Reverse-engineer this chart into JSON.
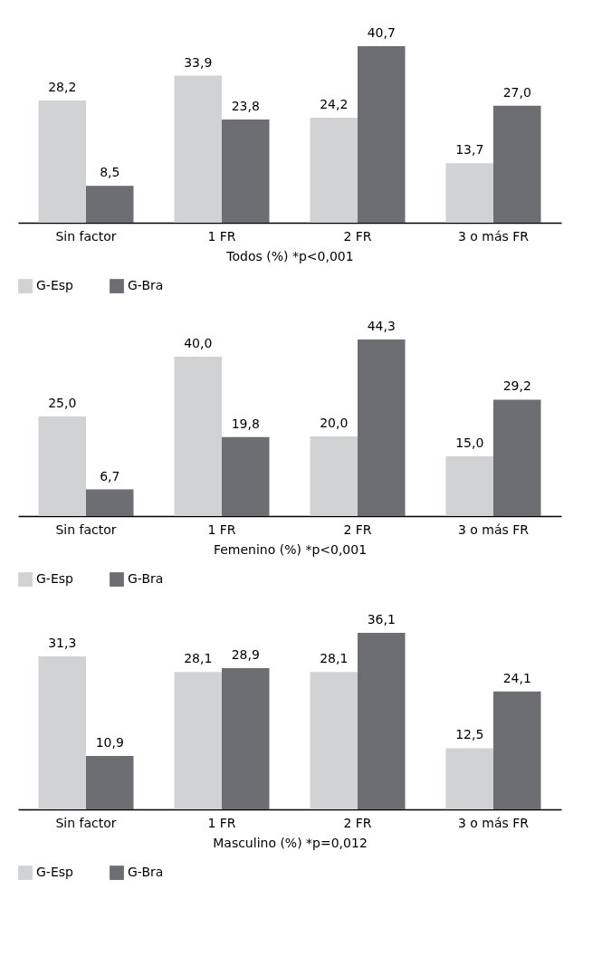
{
  "chart_data": [
    {
      "type": "bar",
      "xlabel": "Todos (%) *p<0,001",
      "categories": [
        "Sin factor",
        "1 FR",
        "2 FR",
        "3 o más FR"
      ],
      "ylim": [
        0,
        40.7
      ],
      "tick_labels": "x",
      "legend": "bottom",
      "grid": false,
      "series": [
        {
          "name": "G-Esp",
          "color": "#d1d2d4",
          "values": [
            28.2,
            33.9,
            24.2,
            13.7
          ],
          "value_labels": [
            "28,2",
            "33,9",
            "24,2",
            "13,7"
          ]
        },
        {
          "name": "G-Bra",
          "color": "#6d6e71",
          "values": [
            8.5,
            23.8,
            40.7,
            27.0
          ],
          "value_labels": [
            "8,5",
            "23,8",
            "40,7",
            "27,0"
          ]
        }
      ]
    },
    {
      "type": "bar",
      "xlabel": "Femenino (%) *p<0,001",
      "categories": [
        "Sin factor",
        "1 FR",
        "2 FR",
        "3 o más FR"
      ],
      "ylim": [
        0,
        44.3
      ],
      "tick_labels": "x",
      "legend": "bottom",
      "grid": false,
      "series": [
        {
          "name": "G-Esp",
          "color": "#d1d2d4",
          "values": [
            25.0,
            40.0,
            20.0,
            15.0
          ],
          "value_labels": [
            "25,0",
            "40,0",
            "20,0",
            "15,0"
          ]
        },
        {
          "name": "G-Bra",
          "color": "#6d6e71",
          "values": [
            6.7,
            19.8,
            44.3,
            29.2
          ],
          "value_labels": [
            "6,7",
            "19,8",
            "44,3",
            "29,2"
          ]
        }
      ]
    },
    {
      "type": "bar",
      "xlabel": "Masculino (%) *p=0,012",
      "categories": [
        "Sin factor",
        "1 FR",
        "2 FR",
        "3 o más FR"
      ],
      "ylim": [
        0,
        36.1
      ],
      "tick_labels": "x",
      "legend": "bottom",
      "grid": false,
      "series": [
        {
          "name": "G-Esp",
          "color": "#d1d2d4",
          "values": [
            31.3,
            28.1,
            28.1,
            12.5
          ],
          "value_labels": [
            "31,3",
            "28,1",
            "28,1",
            "12,5"
          ]
        },
        {
          "name": "G-Bra",
          "color": "#6d6e71",
          "values": [
            10.9,
            28.9,
            36.1,
            24.1
          ],
          "value_labels": [
            "10,9",
            "28,9",
            "36,1",
            "24,1"
          ]
        }
      ]
    }
  ]
}
